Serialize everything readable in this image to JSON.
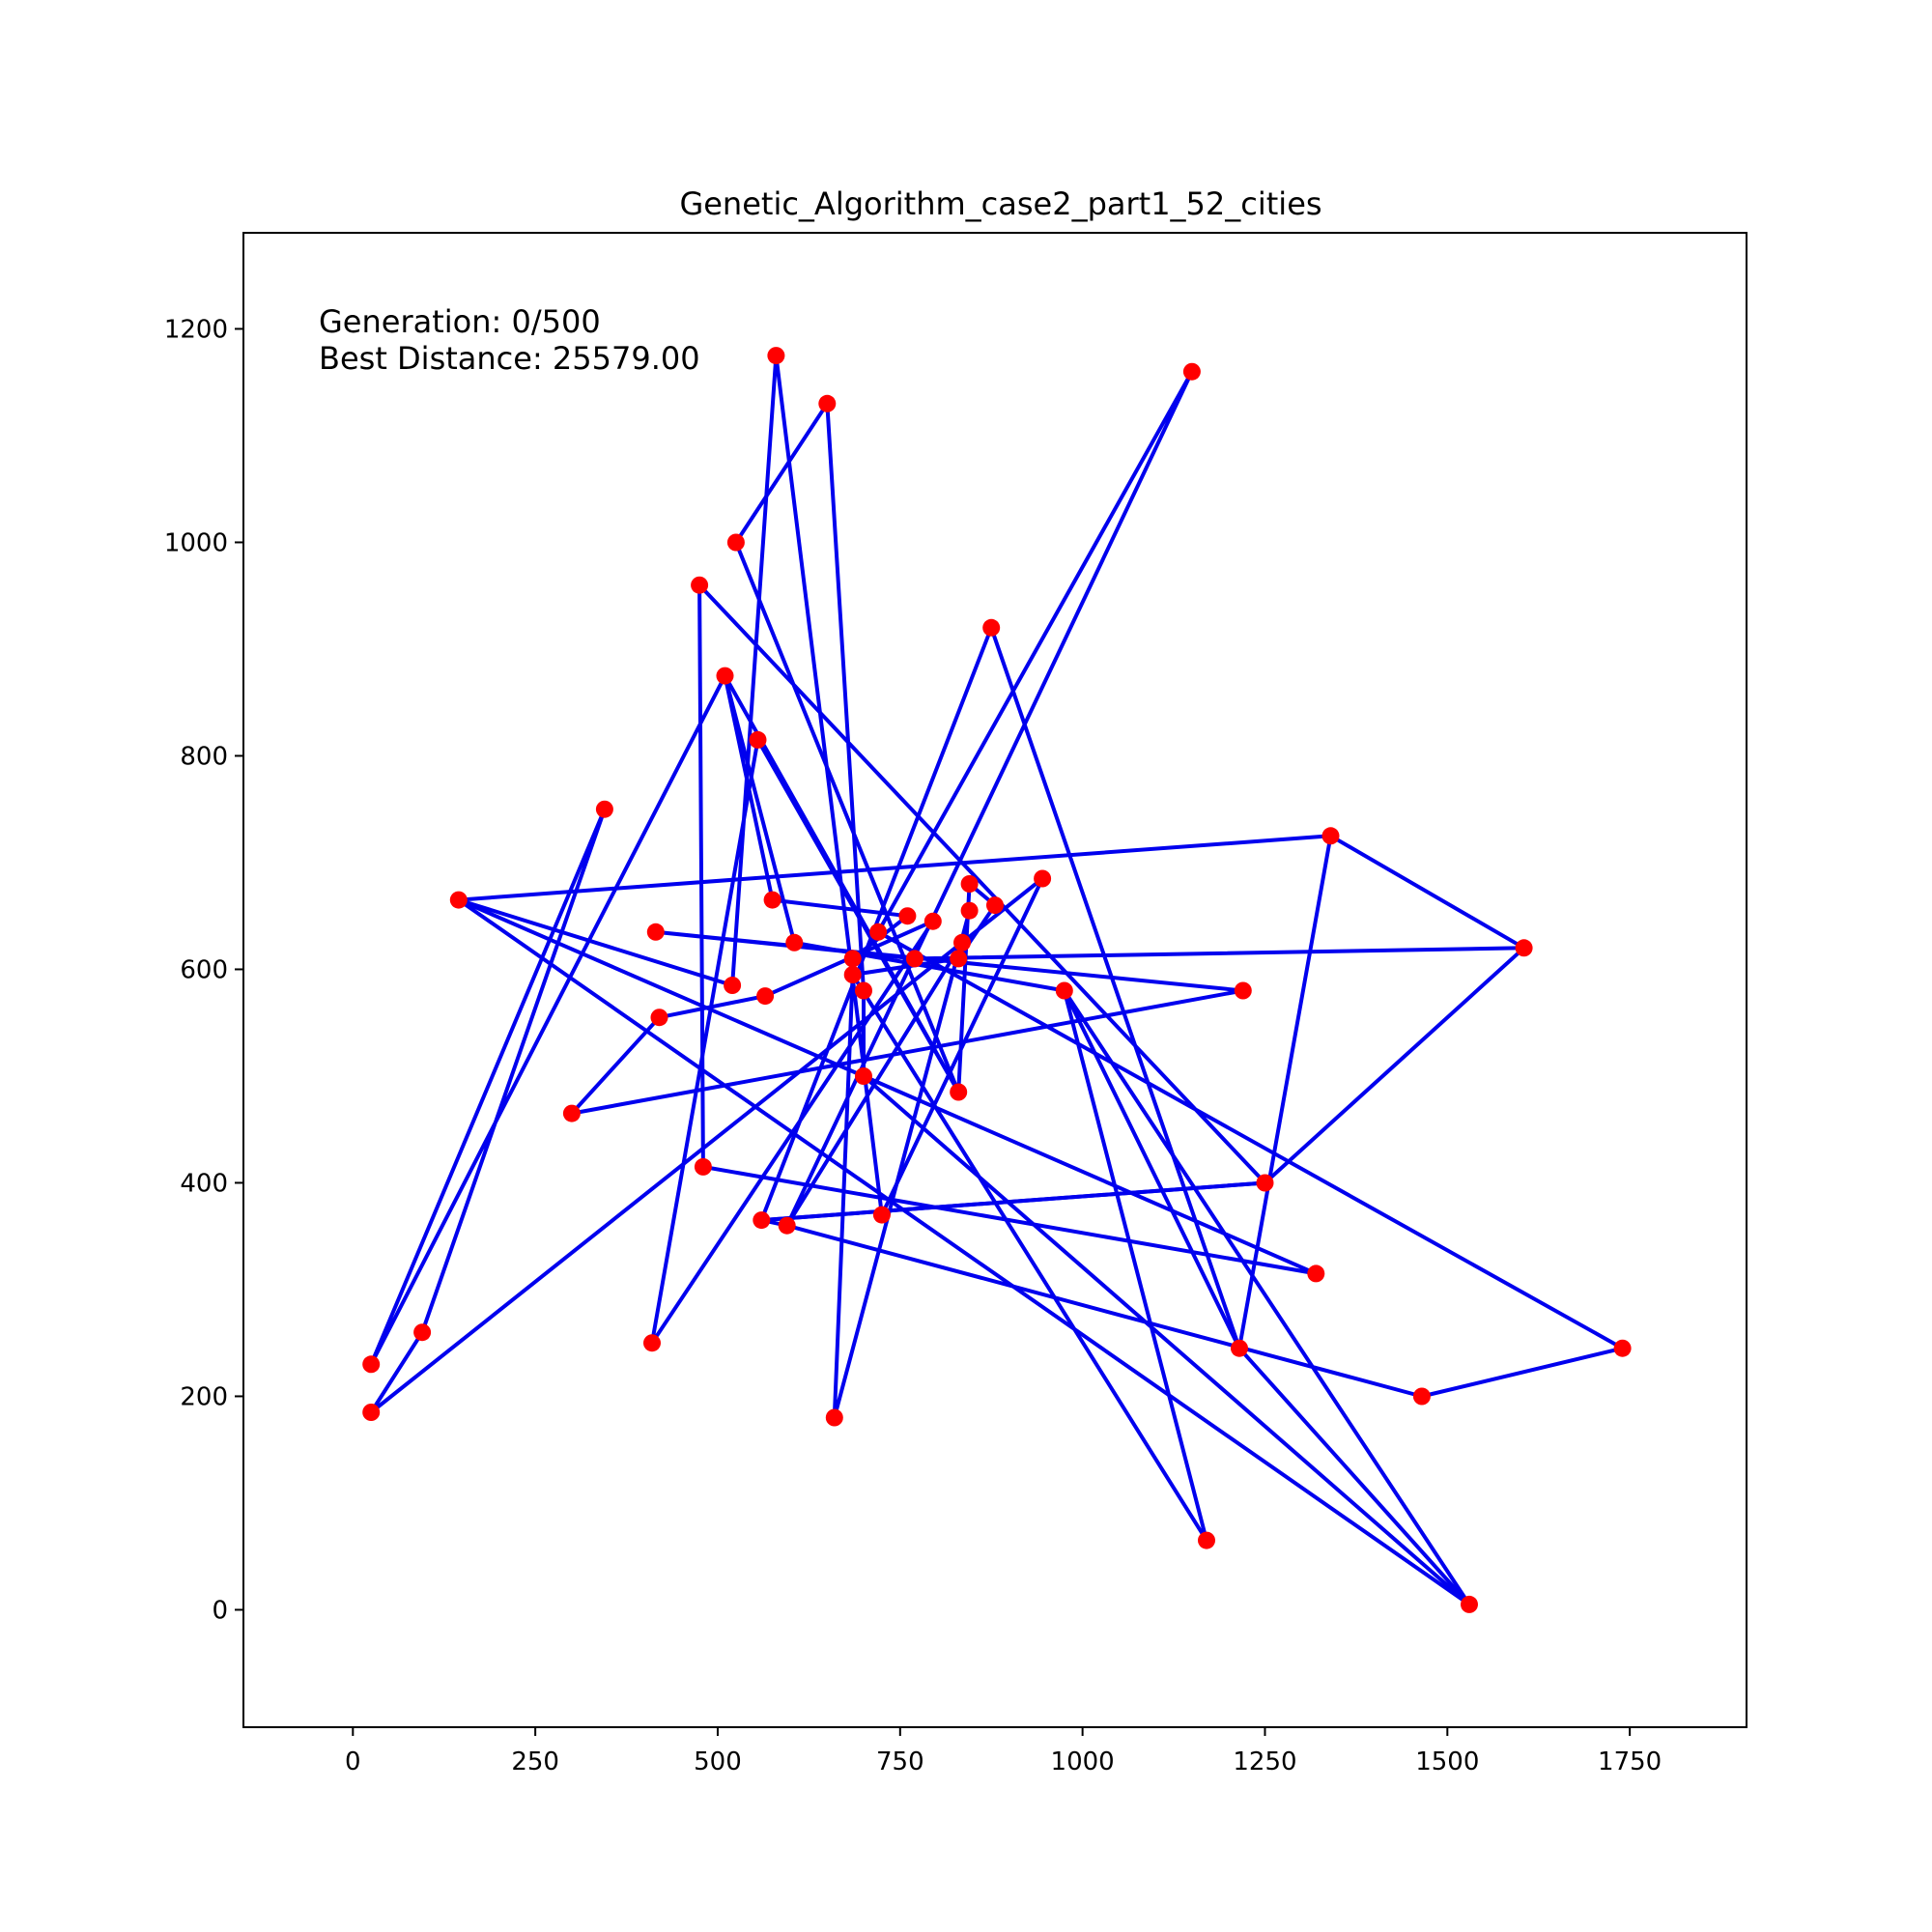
{
  "chart_data": {
    "type": "line",
    "title": "Genetic_Algorithm_case2_part1_52_cities",
    "annotations": {
      "generation": "Generation: 0/500",
      "best_distance": "Best Distance: 25579.00"
    },
    "xlim": [
      -150,
      1910
    ],
    "ylim": [
      -110,
      1290
    ],
    "x_ticks": [
      0,
      250,
      500,
      750,
      1000,
      1250,
      1500,
      1750
    ],
    "y_ticks": [
      0,
      200,
      400,
      600,
      800,
      1000,
      1200
    ],
    "grid": false,
    "colors": {
      "route": "#0000ee",
      "city": "#ff0000"
    },
    "route": [
      [
        25,
        230
      ],
      [
        345,
        750
      ],
      [
        95,
        260
      ],
      [
        25,
        185
      ],
      [
        945,
        685
      ],
      [
        725,
        370
      ],
      [
        580,
        1175
      ],
      [
        520,
        585
      ],
      [
        145,
        665
      ],
      [
        1530,
        5
      ],
      [
        1215,
        245
      ],
      [
        875,
        920
      ],
      [
        560,
        365
      ],
      [
        1250,
        400
      ],
      [
        1605,
        620
      ],
      [
        770,
        610
      ],
      [
        415,
        635
      ],
      [
        1220,
        580
      ],
      [
        300,
        465
      ],
      [
        420,
        555
      ],
      [
        565,
        575
      ],
      [
        795,
        645
      ],
      [
        410,
        250
      ],
      [
        555,
        815
      ],
      [
        830,
        485
      ],
      [
        510,
        875
      ],
      [
        25,
        230
      ]
    ],
    "route_b": [
      [
        475,
        960
      ],
      [
        480,
        415
      ],
      [
        1320,
        315
      ],
      [
        700,
        500
      ],
      [
        700,
        580
      ],
      [
        650,
        1130
      ],
      [
        525,
        1000
      ],
      [
        830,
        485
      ],
      [
        845,
        680
      ],
      [
        880,
        660
      ],
      [
        830,
        610
      ],
      [
        685,
        595
      ],
      [
        685,
        610
      ],
      [
        760,
        650
      ],
      [
        575,
        665
      ],
      [
        510,
        875
      ],
      [
        605,
        625
      ],
      [
        975,
        580
      ],
      [
        1530,
        5
      ],
      [
        700,
        500
      ],
      [
        145,
        665
      ],
      [
        1340,
        725
      ],
      [
        1605,
        620
      ],
      [
        1340,
        725
      ],
      [
        1215,
        245
      ],
      [
        975,
        580
      ],
      [
        1170,
        65
      ],
      [
        685,
        595
      ],
      [
        660,
        180
      ],
      [
        845,
        655
      ],
      [
        835,
        625
      ],
      [
        595,
        360
      ],
      [
        1465,
        200
      ],
      [
        1740,
        245
      ],
      [
        720,
        635
      ],
      [
        1150,
        1160
      ],
      [
        595,
        360
      ],
      [
        560,
        365
      ],
      [
        1250,
        400
      ],
      [
        475,
        960
      ]
    ],
    "cities": [
      [
        565,
        575
      ],
      [
        25,
        185
      ],
      [
        345,
        750
      ],
      [
        945,
        685
      ],
      [
        845,
        655
      ],
      [
        880,
        660
      ],
      [
        25,
        230
      ],
      [
        525,
        1000
      ],
      [
        580,
        1175
      ],
      [
        650,
        1130
      ],
      [
        1605,
        620
      ],
      [
        1220,
        580
      ],
      [
        1465,
        200
      ],
      [
        1530,
        5
      ],
      [
        845,
        680
      ],
      [
        725,
        370
      ],
      [
        145,
        665
      ],
      [
        415,
        635
      ],
      [
        510,
        875
      ],
      [
        560,
        365
      ],
      [
        300,
        465
      ],
      [
        520,
        585
      ],
      [
        480,
        415
      ],
      [
        835,
        625
      ],
      [
        975,
        580
      ],
      [
        1215,
        245
      ],
      [
        1320,
        315
      ],
      [
        1250,
        400
      ],
      [
        660,
        180
      ],
      [
        410,
        250
      ],
      [
        420,
        555
      ],
      [
        575,
        665
      ],
      [
        1150,
        1160
      ],
      [
        700,
        580
      ],
      [
        685,
        595
      ],
      [
        685,
        610
      ],
      [
        770,
        610
      ],
      [
        795,
        645
      ],
      [
        720,
        635
      ],
      [
        760,
        650
      ],
      [
        475,
        960
      ],
      [
        95,
        260
      ],
      [
        875,
        920
      ],
      [
        700,
        500
      ],
      [
        555,
        815
      ],
      [
        830,
        485
      ],
      [
        1170,
        65
      ],
      [
        830,
        610
      ],
      [
        605,
        625
      ],
      [
        595,
        360
      ],
      [
        1340,
        725
      ],
      [
        1740,
        245
      ]
    ]
  }
}
